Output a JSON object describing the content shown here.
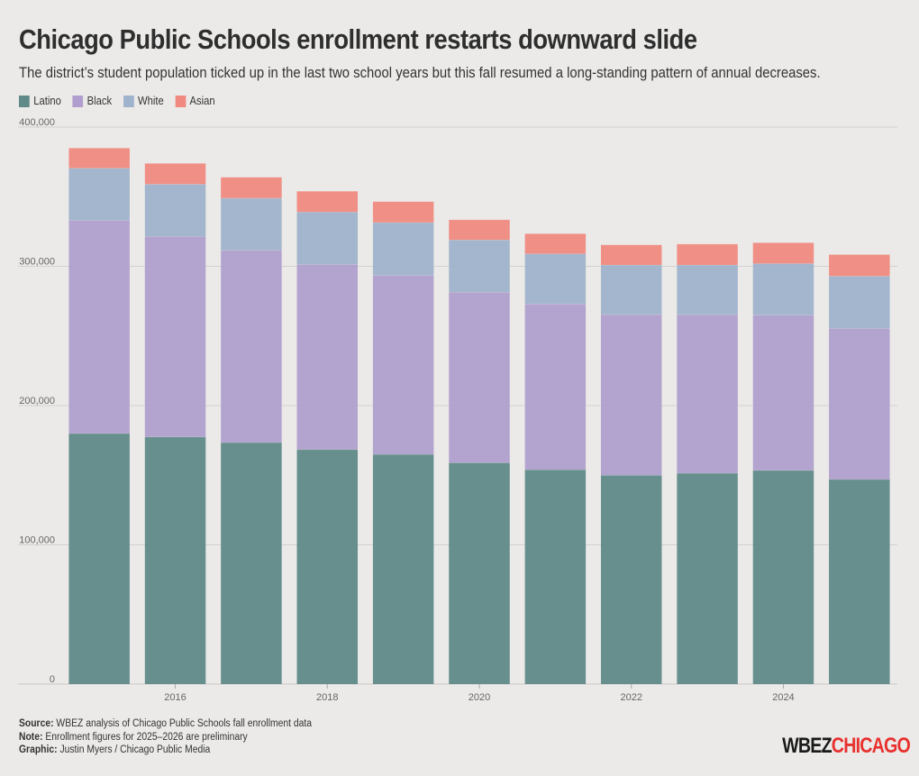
{
  "title": "Chicago Public Schools enrollment restarts downward slide",
  "subtitle": "The district’s student population ticked up in the last two school years but this fall resumed a long-standing pattern of annual decreases.",
  "legend": [
    {
      "name": "Latino",
      "color": "#5f8a88"
    },
    {
      "name": "Black",
      "color": "#b09fce"
    },
    {
      "name": "White",
      "color": "#9fb3cc"
    },
    {
      "name": "Asian",
      "color": "#f08a80"
    }
  ],
  "chart_data": {
    "type": "bar",
    "stacked": true,
    "years": [
      2015,
      2016,
      2017,
      2018,
      2019,
      2020,
      2021,
      2022,
      2023,
      2024,
      2025
    ],
    "x_tick_labels": [
      "2016",
      "2018",
      "2020",
      "2022",
      "2024"
    ],
    "y_tick_labels": [
      "0",
      "100,000",
      "200,000",
      "300,000",
      "400,000"
    ],
    "ylim": [
      0,
      400000
    ],
    "series": [
      {
        "name": "Latino",
        "color": "#5f8a88",
        "values": [
          180000,
          177500,
          173500,
          168500,
          165000,
          159000,
          154000,
          150000,
          151500,
          153500,
          147000
        ]
      },
      {
        "name": "Black",
        "color": "#b09fce",
        "values": [
          153000,
          144000,
          138000,
          133000,
          128500,
          122500,
          119000,
          115500,
          114000,
          111500,
          108500
        ]
      },
      {
        "name": "White",
        "color": "#9fb3cc",
        "values": [
          37500,
          37500,
          37500,
          37500,
          38000,
          37500,
          36000,
          35500,
          35500,
          37000,
          37500
        ]
      },
      {
        "name": "Asian",
        "color": "#f08a80",
        "values": [
          14500,
          15000,
          15000,
          15000,
          15000,
          14500,
          14500,
          14500,
          15000,
          15000,
          15500
        ]
      }
    ]
  },
  "footer": {
    "source_label": "Source:",
    "source_text": "WBEZ analysis of Chicago Public Schools fall enrollment data",
    "note_label": "Note:",
    "note_text": "Enrollment figures for 2025–2026 are preliminary",
    "graphic_label": "Graphic:",
    "graphic_text": "Justin Myers / Chicago Public Media"
  },
  "logo": {
    "part1": "WBEZ",
    "part2": "CHICAGO"
  }
}
